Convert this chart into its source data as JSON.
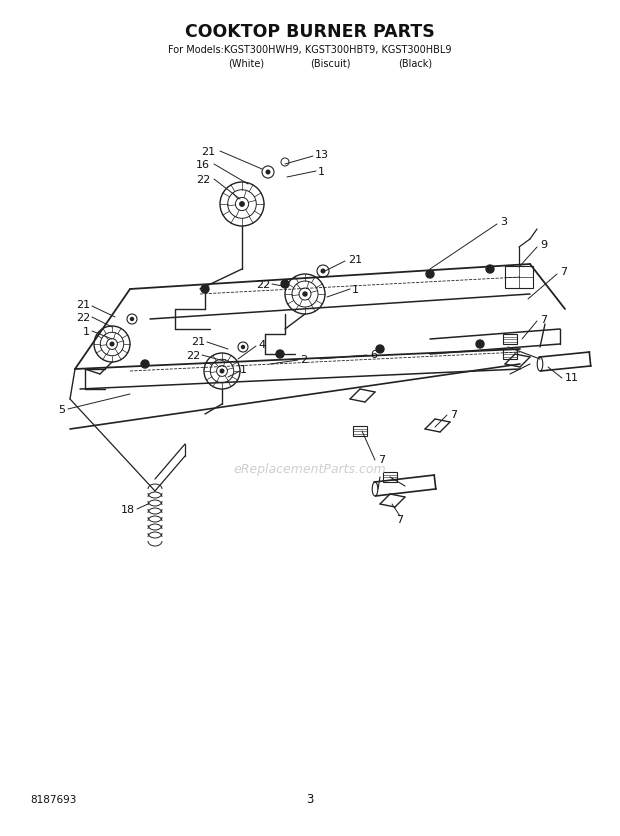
{
  "title": "COOKTOP BURNER PARTS",
  "subtitle_line1": "For Models:KGST300HWH9, KGST300HBT9, KGST300HBL9",
  "subtitle_line2_white": "(White)",
  "subtitle_line2_biscuit": "(Biscuit)",
  "subtitle_line2_black": "(Black)",
  "part_number": "8187693",
  "page_number": "3",
  "bg_color": "#ffffff",
  "line_color": "#222222",
  "text_color": "#111111",
  "watermark": "eReplacementParts.com"
}
